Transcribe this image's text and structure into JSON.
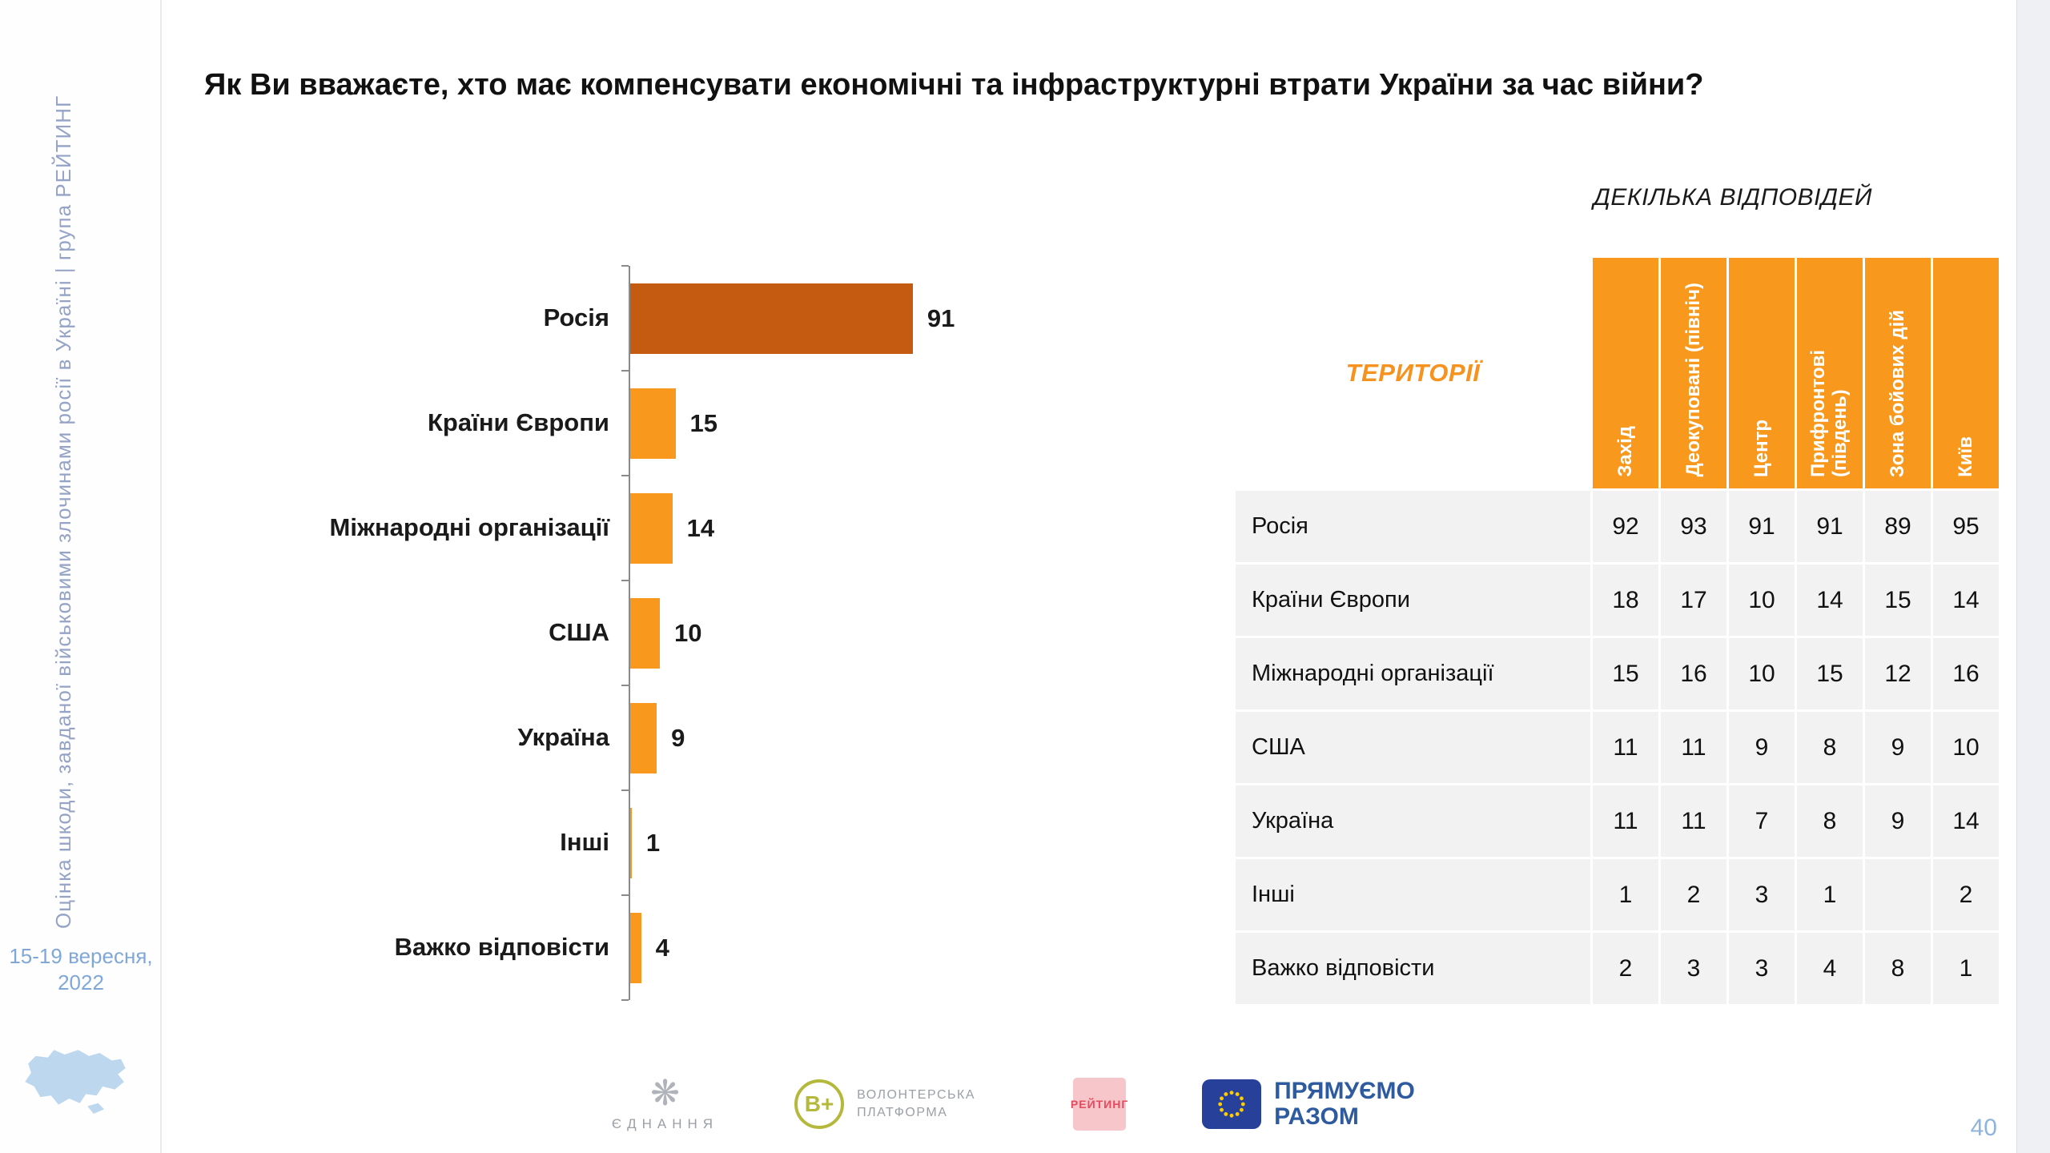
{
  "page": {
    "number": "40"
  },
  "sidebar": {
    "vertical_text": "Оцінка шкоди, завданої військовими злочинами росії в Україні | група РЕЙТИНГ",
    "date": "15-19 вересня, 2022"
  },
  "colors": {
    "orange": "#F8981D",
    "dark_orange": "#C55A11",
    "row_bg": "#F2F2F2",
    "header_text": "#FFFFFF",
    "territory_label": "#F6921E"
  },
  "chart_data": [
    {
      "type": "bar",
      "orientation": "horizontal",
      "title": "Як Ви вважаєте, хто має компенсувати економічні та інфраструктурні втрати України за час війни?",
      "note": "ДЕКІЛЬКА ВІДПОВІДЕЙ",
      "categories": [
        "Росія",
        "Країни Європи",
        "Міжнародні організації",
        "США",
        "Україна",
        "Інші",
        "Важко відповісти"
      ],
      "values": [
        91,
        15,
        14,
        10,
        9,
        1,
        4
      ],
      "xlim": [
        0,
        100
      ],
      "bar_color": "#F8981D",
      "highlight_color": "#C55A11",
      "highlight_index": 0,
      "grid": false,
      "legend": false
    },
    {
      "type": "table",
      "label": "ТЕРИТОРІЇ",
      "columns": [
        "Захід",
        "Деокуповані (північ)",
        "Центр",
        "Прифронтові (південь)",
        "Зона бойових дій",
        "Київ"
      ],
      "rows": [
        {
          "label": "Росія",
          "values": [
            92,
            93,
            91,
            91,
            89,
            95
          ]
        },
        {
          "label": "Країни Європи",
          "values": [
            18,
            17,
            10,
            14,
            15,
            14
          ]
        },
        {
          "label": "Міжнародні організації",
          "values": [
            15,
            16,
            10,
            15,
            12,
            16
          ]
        },
        {
          "label": "США",
          "values": [
            11,
            11,
            9,
            8,
            9,
            10
          ]
        },
        {
          "label": "Україна",
          "values": [
            11,
            11,
            7,
            8,
            9,
            14
          ]
        },
        {
          "label": "Інші",
          "values": [
            1,
            2,
            3,
            1,
            "",
            2
          ]
        },
        {
          "label": "Важко відповісти",
          "values": [
            2,
            3,
            3,
            4,
            8,
            1
          ]
        }
      ]
    }
  ],
  "footer": {
    "logos": [
      {
        "name": "ednannia",
        "label": "ЄДНАННЯ"
      },
      {
        "name": "volunteer-platform",
        "monogram": "В+",
        "label": "ВОЛОНТЕРСЬКА ПЛАТФОРМА"
      },
      {
        "name": "rating-group",
        "label": "РЕЙТИНГ"
      },
      {
        "name": "eu-pryamuyemo-razom",
        "label": "ПРЯМУЄМО РАЗОМ"
      }
    ]
  }
}
